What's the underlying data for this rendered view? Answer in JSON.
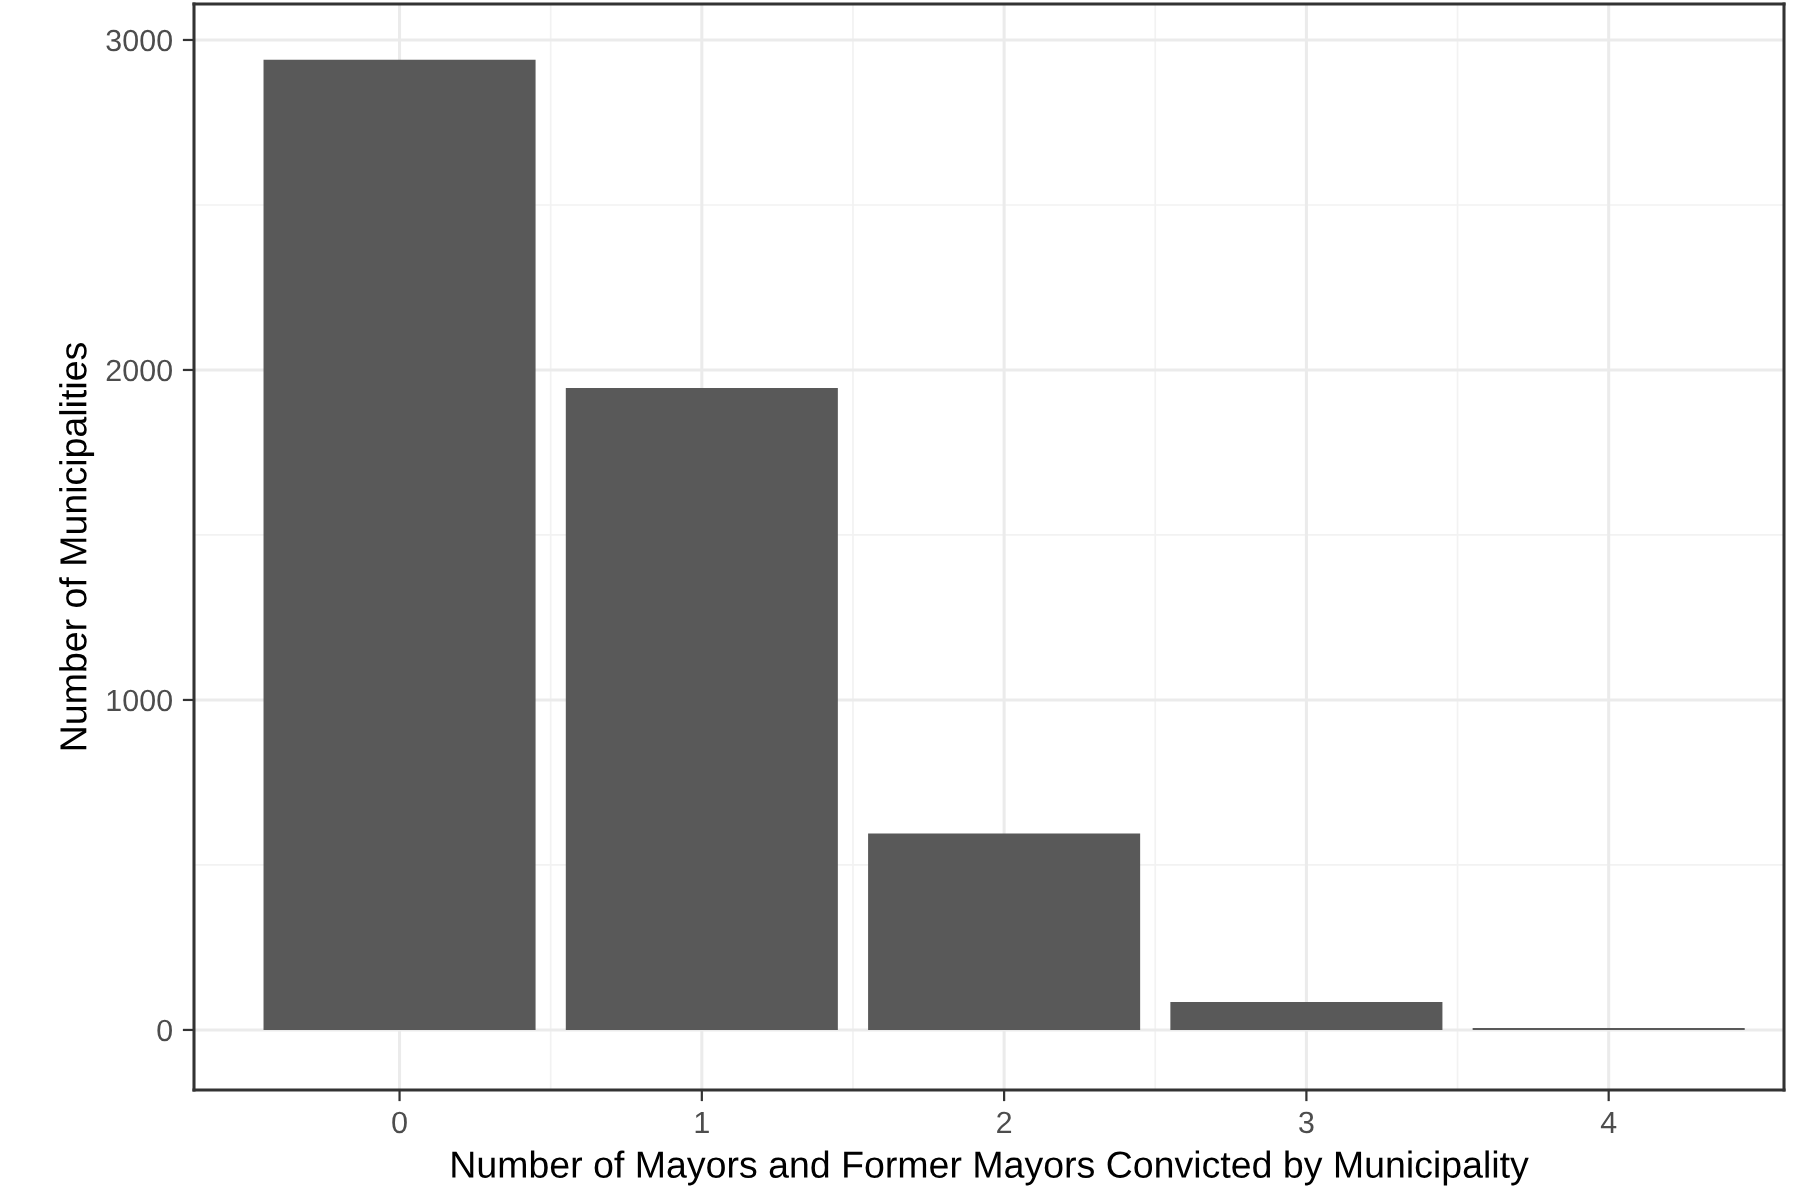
{
  "chart_data": {
    "type": "bar",
    "xlabel": "Number of Mayors and Former Mayors Convicted by Municipality",
    "ylabel": "Number of Municipalities",
    "x": [
      0,
      1,
      2,
      3,
      4
    ],
    "values": [
      2940,
      1945,
      595,
      85,
      6
    ],
    "color": "#595959",
    "xlim": [
      -0.68,
      4.58
    ],
    "xticks": [
      0,
      1,
      2,
      3,
      4
    ],
    "ylim": [
      -182,
      3109
    ],
    "yticks": [
      0,
      1000,
      2000,
      3000
    ],
    "grid": true
  }
}
